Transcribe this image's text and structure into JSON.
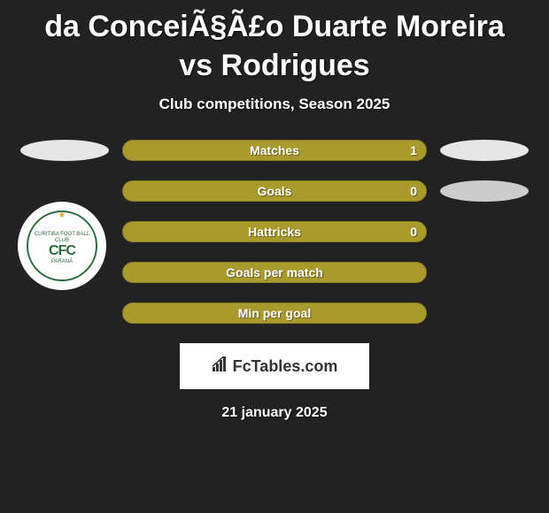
{
  "title": "da ConceiÃ§Ã£o Duarte Moreira vs Rodrigues",
  "subtitle": "Club competitions, Season 2025",
  "colors": {
    "background": "#222222",
    "pill_fill": "#a99a2e",
    "pill_border": "#8a7d26",
    "white": "#ffffff",
    "gray_light": "#e6e6e6",
    "gray_mid": "#cccccc",
    "text": "#ffffff"
  },
  "side_shapes": {
    "left1_color": "#e6e6e6",
    "right1_color": "#e6e6e6",
    "right2_color": "#cccccc"
  },
  "stats": [
    {
      "label": "Matches",
      "value_right": "1",
      "fill_pct": 100
    },
    {
      "label": "Goals",
      "value_right": "0",
      "fill_pct": 100
    },
    {
      "label": "Hattricks",
      "value_right": "0",
      "fill_pct": 100
    },
    {
      "label": "Goals per match",
      "value_right": "",
      "fill_pct": 100
    },
    {
      "label": "Min per goal",
      "value_right": "",
      "fill_pct": 100
    }
  ],
  "badge": {
    "top_text": "CURITIBA FOOT BALL CLUB",
    "center": "CFC",
    "bottom_text": "PARANÁ"
  },
  "fctables": {
    "label": "FcTables.com"
  },
  "date": "21 january 2025"
}
